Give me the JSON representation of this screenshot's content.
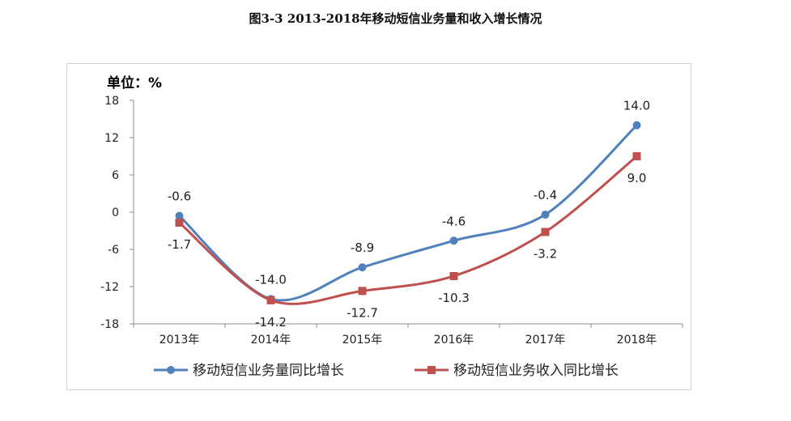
{
  "title": "图3-3  2013-2018年移动短信业务量和收入增长情况",
  "chart_data": {
    "type": "line",
    "unit_label": "单位：%",
    "categories": [
      "2013年",
      "2014年",
      "2015年",
      "2016年",
      "2017年",
      "2018年"
    ],
    "ylim": [
      -18,
      18
    ],
    "yticks": [
      18,
      12,
      6,
      0,
      -6,
      -12,
      -18
    ],
    "grid": false,
    "legend_position": "bottom",
    "series": [
      {
        "name": "移动短信业务量同比增长",
        "values": [
          -0.6,
          -14.0,
          -8.9,
          -4.6,
          -0.4,
          14.0
        ],
        "labels": [
          "-0.6",
          "-14.0",
          "-8.9",
          "-4.6",
          "-0.4",
          "14.0"
        ],
        "label_position": "above",
        "color": "#4f81bd",
        "marker": "circle"
      },
      {
        "name": "移动短信业务收入同比增长",
        "values": [
          -1.7,
          -14.2,
          -12.7,
          -10.3,
          -3.2,
          9.0
        ],
        "labels": [
          "-1.7",
          "-14.2",
          "-12.7",
          "-10.3",
          "-3.2",
          "9.0"
        ],
        "label_position": "below",
        "color": "#c0504d",
        "marker": "square"
      }
    ]
  }
}
